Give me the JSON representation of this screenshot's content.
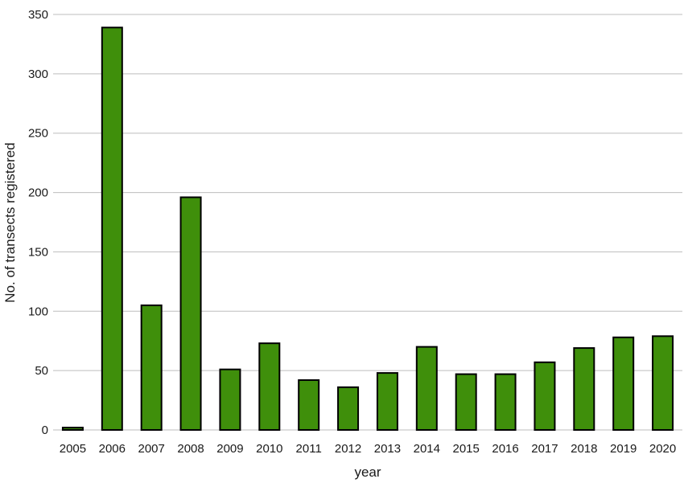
{
  "chart_data": {
    "type": "bar",
    "categories": [
      "2005",
      "2006",
      "2007",
      "2008",
      "2009",
      "2010",
      "2011",
      "2012",
      "2013",
      "2014",
      "2015",
      "2016",
      "2017",
      "2018",
      "2019",
      "2020"
    ],
    "values": [
      2,
      339,
      105,
      196,
      51,
      73,
      42,
      36,
      48,
      70,
      47,
      47,
      57,
      69,
      78,
      79
    ],
    "title": "",
    "xlabel": "year",
    "ylabel": "No. of transects registered",
    "ylim": [
      0,
      350
    ],
    "yticks": [
      0,
      50,
      100,
      150,
      200,
      250,
      300,
      350
    ],
    "grid": "horizontal",
    "bar_color": "#3f8f0b",
    "bar_edge_color": "#000000"
  }
}
